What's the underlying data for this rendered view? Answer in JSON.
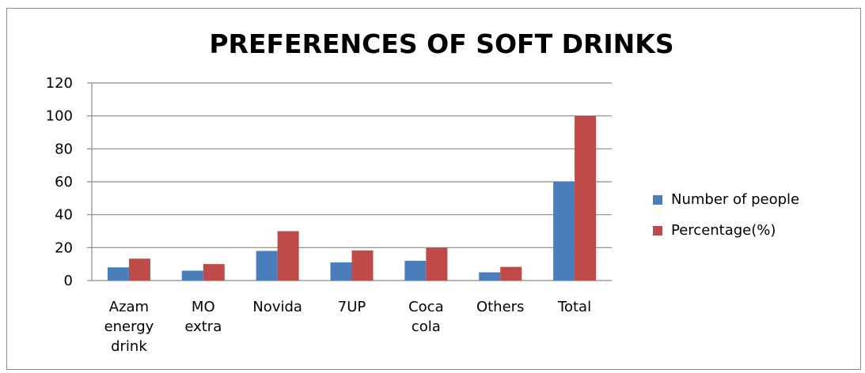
{
  "chart_data": {
    "type": "bar",
    "title": "PREFERENCES OF SOFT DRINKS",
    "xlabel": "",
    "ylabel": "",
    "categories": [
      "Azam energy drink",
      "MO extra",
      "Novida",
      "7UP",
      "Coca cola",
      "Others",
      "Total"
    ],
    "category_lines": [
      [
        "Azam",
        "energy",
        "drink"
      ],
      [
        "MO",
        "extra"
      ],
      [
        "Novida"
      ],
      [
        "7UP"
      ],
      [
        "Coca",
        "cola"
      ],
      [
        "Others"
      ],
      [
        "Total"
      ]
    ],
    "series": [
      {
        "name": "Number of people",
        "values": [
          8,
          6,
          18,
          11,
          12,
          5,
          60
        ],
        "color": "#4a7ebb"
      },
      {
        "name": "Percentage(%)",
        "values": [
          13.3,
          10,
          30,
          18.3,
          20,
          8.3,
          100
        ],
        "color": "#be4b48"
      }
    ],
    "ylim": [
      0,
      120
    ],
    "yticks": [
      0,
      20,
      40,
      60,
      80,
      100,
      120
    ],
    "grid": true,
    "legend_position": "right"
  }
}
